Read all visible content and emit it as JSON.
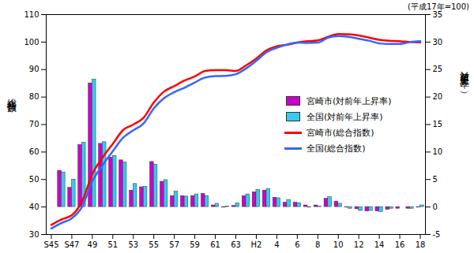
{
  "chart_data": {
    "type": "bar",
    "subtitle": "(平成17年=100)",
    "y_label": "総合指数",
    "y2_label": "対前年上昇率（%）",
    "categories": [
      "S45",
      null,
      "S47",
      null,
      "49",
      null,
      "51",
      null,
      "53",
      null,
      "55",
      null,
      "57",
      null,
      "59",
      null,
      "61",
      null,
      "63",
      null,
      "H2",
      null,
      "4",
      null,
      "6",
      null,
      "8",
      null,
      "10",
      null,
      "12",
      null,
      "14",
      null,
      "16",
      null,
      "18"
    ],
    "ylim": [
      30,
      110
    ],
    "yticks": [
      30,
      40,
      50,
      60,
      70,
      80,
      90,
      100,
      110
    ],
    "y2lim": [
      -5,
      35
    ],
    "y2ticks": [
      -5,
      0,
      5,
      10,
      15,
      20,
      25,
      30,
      35
    ],
    "legend": "right",
    "series": [
      {
        "name": "宮崎市(対前年上昇率)",
        "type": "bar",
        "axis": "y2",
        "color": "#cc00cc",
        "values": [
          null,
          6.6,
          3.5,
          11.3,
          22.5,
          11.5,
          9.0,
          8.5,
          3.0,
          3.6,
          8.2,
          4.6,
          2.0,
          2.0,
          2.0,
          2.4,
          0.3,
          -0.1,
          0.2,
          2.0,
          2.7,
          3.0,
          1.7,
          0.8,
          0.8,
          0.3,
          0.3,
          1.5,
          1.0,
          -0.1,
          -0.4,
          -0.8,
          -0.8,
          -0.5,
          -0.3,
          -0.3,
          -0.1
        ]
      },
      {
        "name": "全国(対前年上昇率)",
        "type": "bar",
        "axis": "y2",
        "color": "#33ccee",
        "values": [
          null,
          6.3,
          5.0,
          11.7,
          23.2,
          11.8,
          9.3,
          8.1,
          4.2,
          3.7,
          7.7,
          4.9,
          2.8,
          1.9,
          2.3,
          2.0,
          0.6,
          0.1,
          0.7,
          2.3,
          3.1,
          3.3,
          1.6,
          1.3,
          0.7,
          -0.1,
          0.1,
          1.8,
          0.6,
          -0.3,
          -0.7,
          -0.7,
          -0.9,
          -0.3,
          0.0,
          -0.3,
          0.3
        ]
      },
      {
        "name": "宮崎市(総合指数)",
        "type": "line",
        "color": "#ff0000",
        "values": [
          33.5,
          35.5,
          37.0,
          42.0,
          52.0,
          58.0,
          63.0,
          68.0,
          70.0,
          72.5,
          78.0,
          82.0,
          84.0,
          86.0,
          87.5,
          89.5,
          89.8,
          89.8,
          89.5,
          91.5,
          94.0,
          97.0,
          98.5,
          99.0,
          99.8,
          100.3,
          100.6,
          101.9,
          102.9,
          102.8,
          102.4,
          101.6,
          100.8,
          100.5,
          100.3,
          100.0,
          99.9
        ]
      },
      {
        "name": "全国(総合指数)",
        "type": "line",
        "color": "#3366ff",
        "values": [
          32.2,
          34.2,
          35.9,
          40.1,
          49.4,
          55.2,
          60.3,
          65.2,
          67.9,
          70.4,
          75.9,
          79.6,
          81.8,
          83.4,
          85.3,
          87.1,
          87.6,
          87.7,
          88.3,
          90.4,
          93.2,
          96.3,
          97.9,
          99.1,
          99.8,
          99.7,
          99.8,
          101.6,
          102.2,
          101.9,
          101.2,
          100.5,
          99.5,
          99.3,
          99.3,
          100.0,
          100.3
        ]
      }
    ]
  }
}
